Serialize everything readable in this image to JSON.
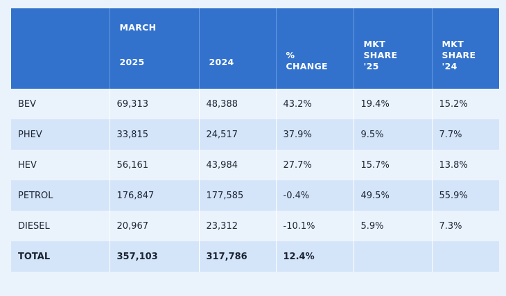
{
  "table": {
    "header": {
      "group_label": "MARCH",
      "columns": [
        "",
        "2025",
        "2024",
        "% CHANGE",
        "MKT SHARE '25",
        "MKT SHARE '24"
      ],
      "col3_lines": [
        "%",
        "CHANGE"
      ],
      "col4_lines": [
        "MKT",
        "SHARE",
        "'25"
      ],
      "col5_lines": [
        "MKT",
        "SHARE",
        "'24"
      ]
    },
    "rows": [
      [
        "BEV",
        "69,313",
        "48,388",
        "43.2%",
        "19.4%",
        "15.2%"
      ],
      [
        "PHEV",
        "33,815",
        "24,517",
        "37.9%",
        "9.5%",
        "7.7%"
      ],
      [
        "HEV",
        "56,161",
        "43,984",
        "27.7%",
        "15.7%",
        "13.8%"
      ],
      [
        "PETROL",
        "176,847",
        "177,585",
        "-0.4%",
        "49.5%",
        "55.9%"
      ],
      [
        "DIESEL",
        "20,967",
        "23,312",
        "-10.1%",
        "5.9%",
        "7.3%"
      ],
      [
        "TOTAL",
        "357,103",
        "317,786",
        "12.4%",
        "",
        ""
      ]
    ]
  },
  "colors": {
    "header_bg": "#3272cd",
    "row_light": "#eaf3fc",
    "row_dark": "#d5e5f9",
    "text": "#1b2333"
  }
}
